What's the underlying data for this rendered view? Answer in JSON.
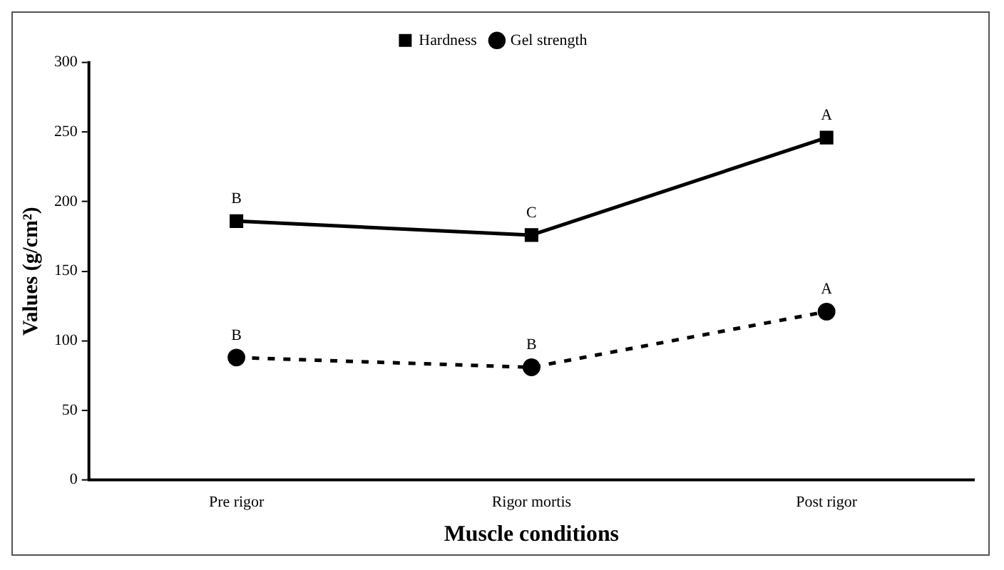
{
  "chart_data": {
    "type": "line",
    "xlabel": "Muscle conditions",
    "ylabel": "Values (g/cm²)",
    "categories": [
      "Pre rigor",
      "Rigor mortis",
      "Post rigor"
    ],
    "series": [
      {
        "name": "Hardness",
        "color": "#000000",
        "values": [
          186,
          176,
          246
        ],
        "marker": "square",
        "line_style": "solid"
      },
      {
        "name": "Gel strength",
        "color": "#000000",
        "values": [
          88,
          81,
          121
        ],
        "marker": "circle",
        "line_style": "dashed"
      }
    ],
    "ylim": [
      0,
      300
    ],
    "yticks": [
      0,
      50,
      100,
      150,
      200,
      250,
      300
    ],
    "grid": false,
    "legend": "top",
    "annotations": [
      {
        "text": "B",
        "x": "Pre rigor",
        "y": 186
      },
      {
        "text": "C",
        "x": "Rigor mortis",
        "y": 176
      },
      {
        "text": "A",
        "x": "Post rigor",
        "y": 246
      },
      {
        "text": "B",
        "x": "Pre rigor",
        "y": 88
      },
      {
        "text": "B",
        "x": "Rigor mortis",
        "y": 81
      },
      {
        "text": "A",
        "x": "Post rigor",
        "y": 121
      }
    ]
  }
}
